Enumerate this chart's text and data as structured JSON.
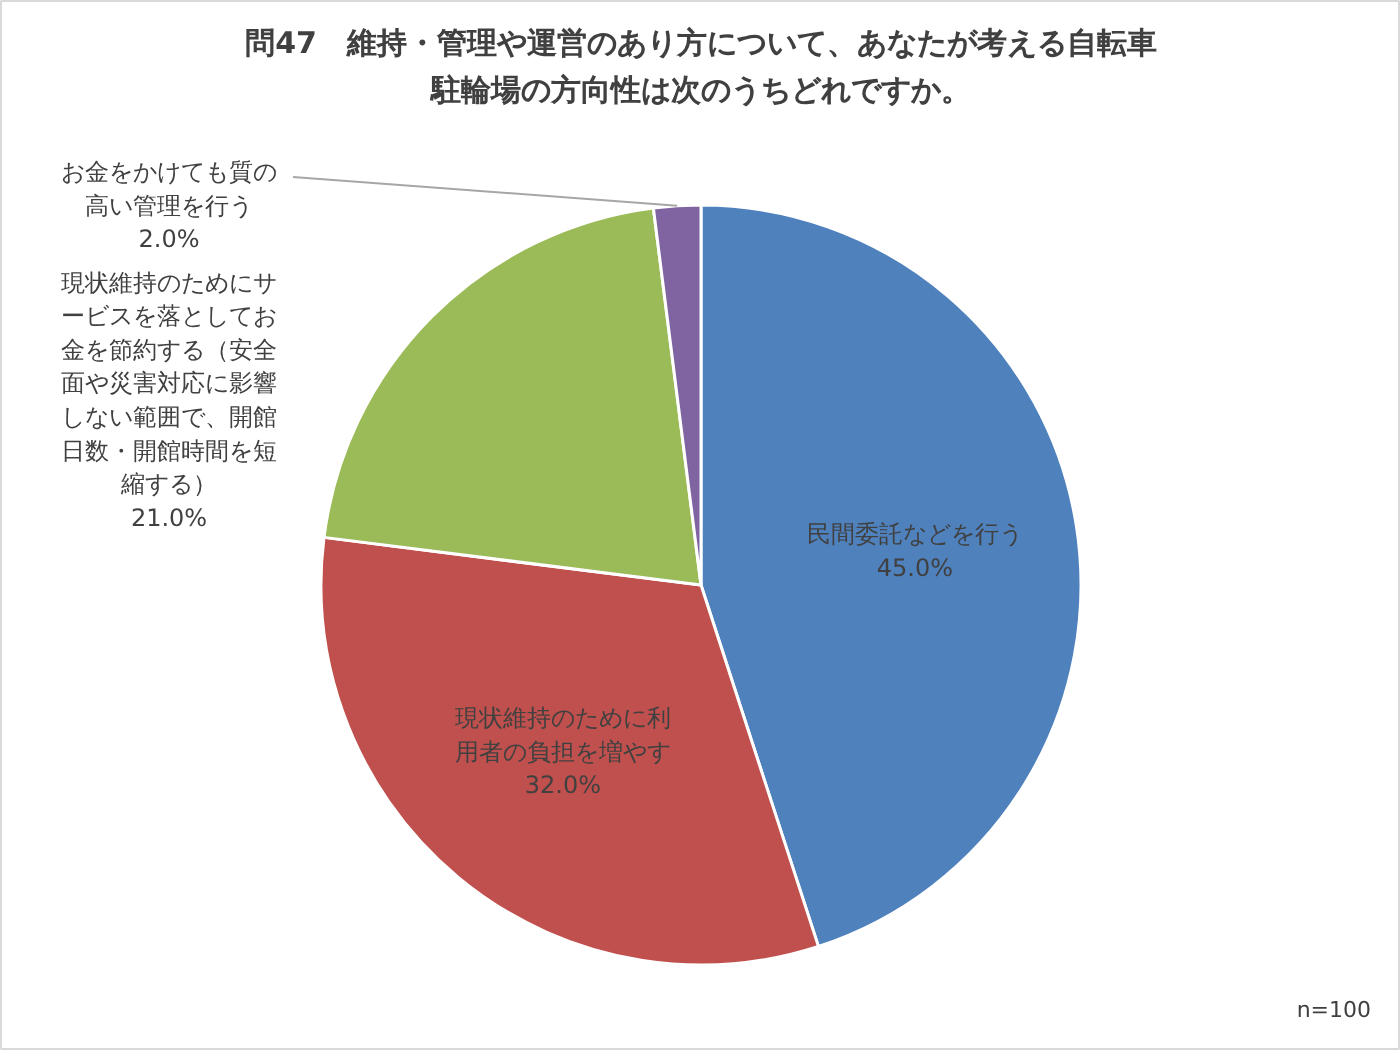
{
  "chart_data": {
    "type": "pie",
    "title": "問47　維持・管理や運営のあり方について、あなたが考える自転車駐輪場の方向性は次のうちどれですか。",
    "categories": [
      "民間委託などを行う",
      "現状維持のために利用者の負担を増やす",
      "現状維持のためにサービスを落としてお金を節約する（安全面や災害対応に影響しない範囲で、開館日数・開館時間を短縮する）",
      "お金をかけても質の高い管理を行う"
    ],
    "values": [
      45.0,
      32.0,
      21.0,
      2.0
    ],
    "value_labels": [
      "45.0%",
      "32.0%",
      "21.0%",
      "2.0%"
    ],
    "colors": [
      "#4f81bd",
      "#c0504d",
      "#9bbb59",
      "#8064a2"
    ],
    "annotations": [
      "n=100"
    ]
  }
}
